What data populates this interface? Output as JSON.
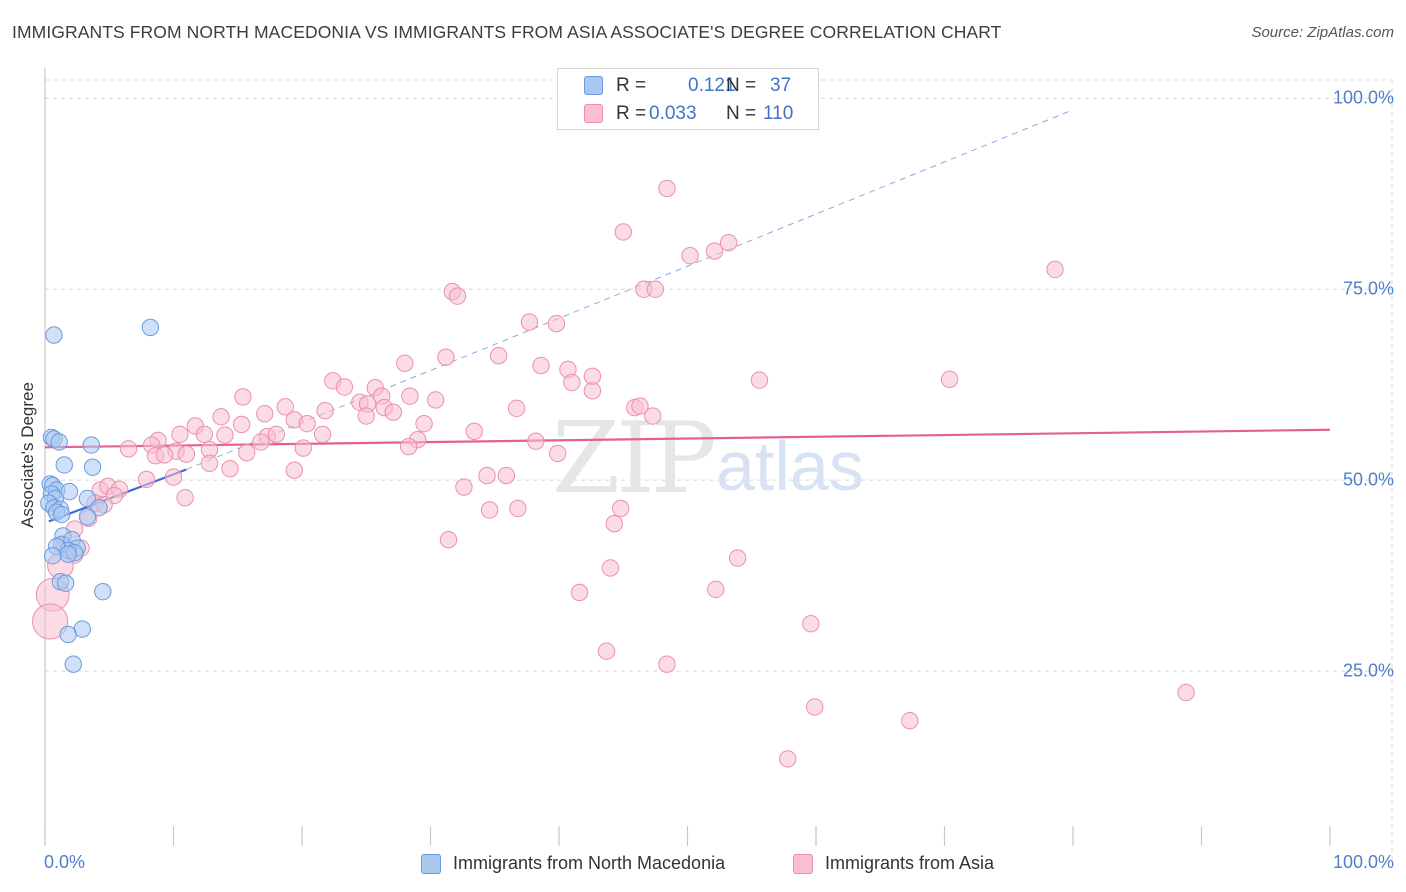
{
  "header": {
    "title": "IMMIGRANTS FROM NORTH MACEDONIA VS IMMIGRANTS FROM ASIA ASSOCIATE'S DEGREE CORRELATION CHART",
    "source": "Source: ZipAtlas.com"
  },
  "stats": {
    "r_label": "R =",
    "n_label": "N =",
    "series1": {
      "r": "0.121",
      "n": "37"
    },
    "series2": {
      "r": "0.033",
      "n": "110"
    }
  },
  "watermark": {
    "zip": "ZIP",
    "atlas": "atlas"
  },
  "colors": {
    "series1_fill": "#a9c8f0",
    "series1_stroke": "#6a9be0",
    "series1_line": "#3b6fd6",
    "series2_fill": "#f7bfd0",
    "series2_stroke": "#ec8fae",
    "series2_line": "#e2628d",
    "axis_text": "#4f7fcb",
    "grid": "#d8d8d8"
  },
  "chart_data": {
    "type": "scatter",
    "title": "IMMIGRANTS FROM NORTH MACEDONIA VS IMMIGRANTS FROM ASIA ASSOCIATE'S DEGREE CORRELATION CHART",
    "xlabel": "",
    "ylabel": "Associate's Degree",
    "xlim": [
      0,
      100
    ],
    "ylim": [
      0,
      105
    ],
    "x_tick_labels": [
      "0.0%",
      "100.0%"
    ],
    "y_ticks": [
      25,
      50,
      75,
      100
    ],
    "y_tick_labels": [
      "25.0%",
      "50.0%",
      "75.0%",
      "100.0%"
    ],
    "legend_position": "bottom-center",
    "series": [
      {
        "name": "Immigrants from North Macedonia",
        "r": 0.121,
        "n": 37,
        "trend": {
          "x": [
            0.3,
            11
          ],
          "y": [
            44.6,
            51.4
          ]
        },
        "trend_dashed": {
          "x": [
            11,
            80
          ],
          "y": [
            51.4,
            98.5
          ]
        },
        "points": [
          {
            "x": 0.5,
            "y": 55.6
          },
          {
            "x": 0.7,
            "y": 55.4
          },
          {
            "x": 1.1,
            "y": 55.0
          },
          {
            "x": 0.7,
            "y": 69.0
          },
          {
            "x": 8.2,
            "y": 70.0
          },
          {
            "x": 3.6,
            "y": 54.6
          },
          {
            "x": 1.5,
            "y": 52.0
          },
          {
            "x": 3.7,
            "y": 51.7
          },
          {
            "x": 0.4,
            "y": 49.5
          },
          {
            "x": 0.6,
            "y": 49.3
          },
          {
            "x": 0.9,
            "y": 48.7
          },
          {
            "x": 0.5,
            "y": 48.2
          },
          {
            "x": 0.8,
            "y": 47.6
          },
          {
            "x": 1.9,
            "y": 48.5
          },
          {
            "x": 0.3,
            "y": 47.0
          },
          {
            "x": 0.7,
            "y": 46.4
          },
          {
            "x": 1.2,
            "y": 46.2
          },
          {
            "x": 0.9,
            "y": 45.8
          },
          {
            "x": 1.3,
            "y": 45.5
          },
          {
            "x": 3.3,
            "y": 47.6
          },
          {
            "x": 4.2,
            "y": 46.4
          },
          {
            "x": 3.3,
            "y": 45.2
          },
          {
            "x": 1.4,
            "y": 42.7
          },
          {
            "x": 1.3,
            "y": 41.6
          },
          {
            "x": 2.1,
            "y": 42.2
          },
          {
            "x": 2.5,
            "y": 41.1
          },
          {
            "x": 1.8,
            "y": 40.8
          },
          {
            "x": 2.3,
            "y": 40.5
          },
          {
            "x": 0.9,
            "y": 41.3
          },
          {
            "x": 1.8,
            "y": 40.3
          },
          {
            "x": 0.6,
            "y": 40.1
          },
          {
            "x": 1.2,
            "y": 36.7
          },
          {
            "x": 1.6,
            "y": 36.5
          },
          {
            "x": 4.5,
            "y": 35.4
          },
          {
            "x": 2.9,
            "y": 30.5
          },
          {
            "x": 1.8,
            "y": 29.8
          },
          {
            "x": 2.2,
            "y": 25.9
          }
        ]
      },
      {
        "name": "Immigrants from Asia",
        "r": 0.033,
        "n": 110,
        "trend": {
          "x": [
            0,
            100
          ],
          "y": [
            54.3,
            56.6
          ]
        },
        "points": [
          {
            "x": 48.4,
            "y": 88.2
          },
          {
            "x": 45.0,
            "y": 82.5
          },
          {
            "x": 53.2,
            "y": 81.1
          },
          {
            "x": 52.1,
            "y": 80.0
          },
          {
            "x": 50.2,
            "y": 79.4
          },
          {
            "x": 78.6,
            "y": 77.6
          },
          {
            "x": 31.7,
            "y": 74.7
          },
          {
            "x": 32.1,
            "y": 74.1
          },
          {
            "x": 46.6,
            "y": 75.0
          },
          {
            "x": 47.5,
            "y": 75.0
          },
          {
            "x": 37.7,
            "y": 70.7
          },
          {
            "x": 39.8,
            "y": 70.5
          },
          {
            "x": 31.2,
            "y": 66.1
          },
          {
            "x": 35.3,
            "y": 66.3
          },
          {
            "x": 28.0,
            "y": 65.3
          },
          {
            "x": 38.6,
            "y": 65.0
          },
          {
            "x": 40.7,
            "y": 64.5
          },
          {
            "x": 42.6,
            "y": 63.6
          },
          {
            "x": 41.0,
            "y": 62.8
          },
          {
            "x": 42.6,
            "y": 61.7
          },
          {
            "x": 55.6,
            "y": 63.1
          },
          {
            "x": 70.4,
            "y": 63.2
          },
          {
            "x": 22.4,
            "y": 63.0
          },
          {
            "x": 23.3,
            "y": 62.2
          },
          {
            "x": 25.7,
            "y": 62.1
          },
          {
            "x": 26.2,
            "y": 61.0
          },
          {
            "x": 28.4,
            "y": 61.0
          },
          {
            "x": 30.4,
            "y": 60.5
          },
          {
            "x": 24.5,
            "y": 60.2
          },
          {
            "x": 25.1,
            "y": 60.0
          },
          {
            "x": 26.4,
            "y": 59.5
          },
          {
            "x": 36.7,
            "y": 59.4
          },
          {
            "x": 45.9,
            "y": 59.5
          },
          {
            "x": 46.3,
            "y": 59.7
          },
          {
            "x": 47.3,
            "y": 58.4
          },
          {
            "x": 15.4,
            "y": 60.9
          },
          {
            "x": 18.7,
            "y": 59.6
          },
          {
            "x": 19.4,
            "y": 57.9
          },
          {
            "x": 21.8,
            "y": 59.1
          },
          {
            "x": 25.0,
            "y": 58.4
          },
          {
            "x": 27.1,
            "y": 58.9
          },
          {
            "x": 29.5,
            "y": 57.4
          },
          {
            "x": 11.7,
            "y": 57.1
          },
          {
            "x": 13.7,
            "y": 58.3
          },
          {
            "x": 15.3,
            "y": 57.3
          },
          {
            "x": 17.1,
            "y": 58.7
          },
          {
            "x": 20.4,
            "y": 57.4
          },
          {
            "x": 10.5,
            "y": 56.0
          },
          {
            "x": 12.4,
            "y": 56.0
          },
          {
            "x": 14.0,
            "y": 55.9
          },
          {
            "x": 17.3,
            "y": 55.7
          },
          {
            "x": 18.0,
            "y": 56.0
          },
          {
            "x": 21.6,
            "y": 56.0
          },
          {
            "x": 33.4,
            "y": 56.4
          },
          {
            "x": 8.8,
            "y": 55.2
          },
          {
            "x": 16.8,
            "y": 55.0
          },
          {
            "x": 20.1,
            "y": 54.2
          },
          {
            "x": 29.0,
            "y": 55.3
          },
          {
            "x": 28.3,
            "y": 54.4
          },
          {
            "x": 38.2,
            "y": 55.1
          },
          {
            "x": 6.5,
            "y": 54.1
          },
          {
            "x": 8.3,
            "y": 54.6
          },
          {
            "x": 10.2,
            "y": 53.8
          },
          {
            "x": 11.0,
            "y": 53.4
          },
          {
            "x": 12.8,
            "y": 54.0
          },
          {
            "x": 15.7,
            "y": 53.6
          },
          {
            "x": 8.6,
            "y": 53.2
          },
          {
            "x": 9.3,
            "y": 53.3
          },
          {
            "x": 12.8,
            "y": 52.2
          },
          {
            "x": 14.4,
            "y": 51.5
          },
          {
            "x": 19.4,
            "y": 51.3
          },
          {
            "x": 39.9,
            "y": 53.5
          },
          {
            "x": 7.9,
            "y": 50.1
          },
          {
            "x": 10.0,
            "y": 50.4
          },
          {
            "x": 34.4,
            "y": 50.6
          },
          {
            "x": 35.9,
            "y": 50.6
          },
          {
            "x": 32.6,
            "y": 49.1
          },
          {
            "x": 4.3,
            "y": 48.7
          },
          {
            "x": 4.9,
            "y": 49.2
          },
          {
            "x": 5.8,
            "y": 48.8
          },
          {
            "x": 5.4,
            "y": 48.0
          },
          {
            "x": 3.9,
            "y": 47.0
          },
          {
            "x": 4.6,
            "y": 46.8
          },
          {
            "x": 10.9,
            "y": 47.7
          },
          {
            "x": 34.6,
            "y": 46.1
          },
          {
            "x": 36.8,
            "y": 46.3
          },
          {
            "x": 3.4,
            "y": 45.0
          },
          {
            "x": 44.8,
            "y": 46.3
          },
          {
            "x": 44.3,
            "y": 44.3
          },
          {
            "x": 2.3,
            "y": 43.6
          },
          {
            "x": 31.4,
            "y": 42.2
          },
          {
            "x": 1.5,
            "y": 41.5
          },
          {
            "x": 2.8,
            "y": 41.1
          },
          {
            "x": 2.3,
            "y": 40.2
          },
          {
            "x": 53.9,
            "y": 39.8
          },
          {
            "x": 1.2,
            "y": 38.8
          },
          {
            "x": 44.0,
            "y": 38.5
          },
          {
            "x": 52.2,
            "y": 35.7
          },
          {
            "x": 41.6,
            "y": 35.3
          },
          {
            "x": 0.6,
            "y": 35.0
          },
          {
            "x": 59.6,
            "y": 31.2
          },
          {
            "x": 0.4,
            "y": 31.5
          },
          {
            "x": 43.7,
            "y": 27.6
          },
          {
            "x": 48.4,
            "y": 25.9
          },
          {
            "x": 88.8,
            "y": 22.2
          },
          {
            "x": 59.9,
            "y": 20.3
          },
          {
            "x": 67.3,
            "y": 18.5
          },
          {
            "x": 57.8,
            "y": 13.5
          }
        ]
      }
    ]
  },
  "axes": {
    "y_tick_labels": [
      "100.0%",
      "75.0%",
      "50.0%",
      "25.0%"
    ],
    "x_tick_left": "0.0%",
    "x_tick_right": "100.0%"
  },
  "legend": {
    "series1": "Immigrants from North Macedonia",
    "series2": "Immigrants from Asia"
  }
}
